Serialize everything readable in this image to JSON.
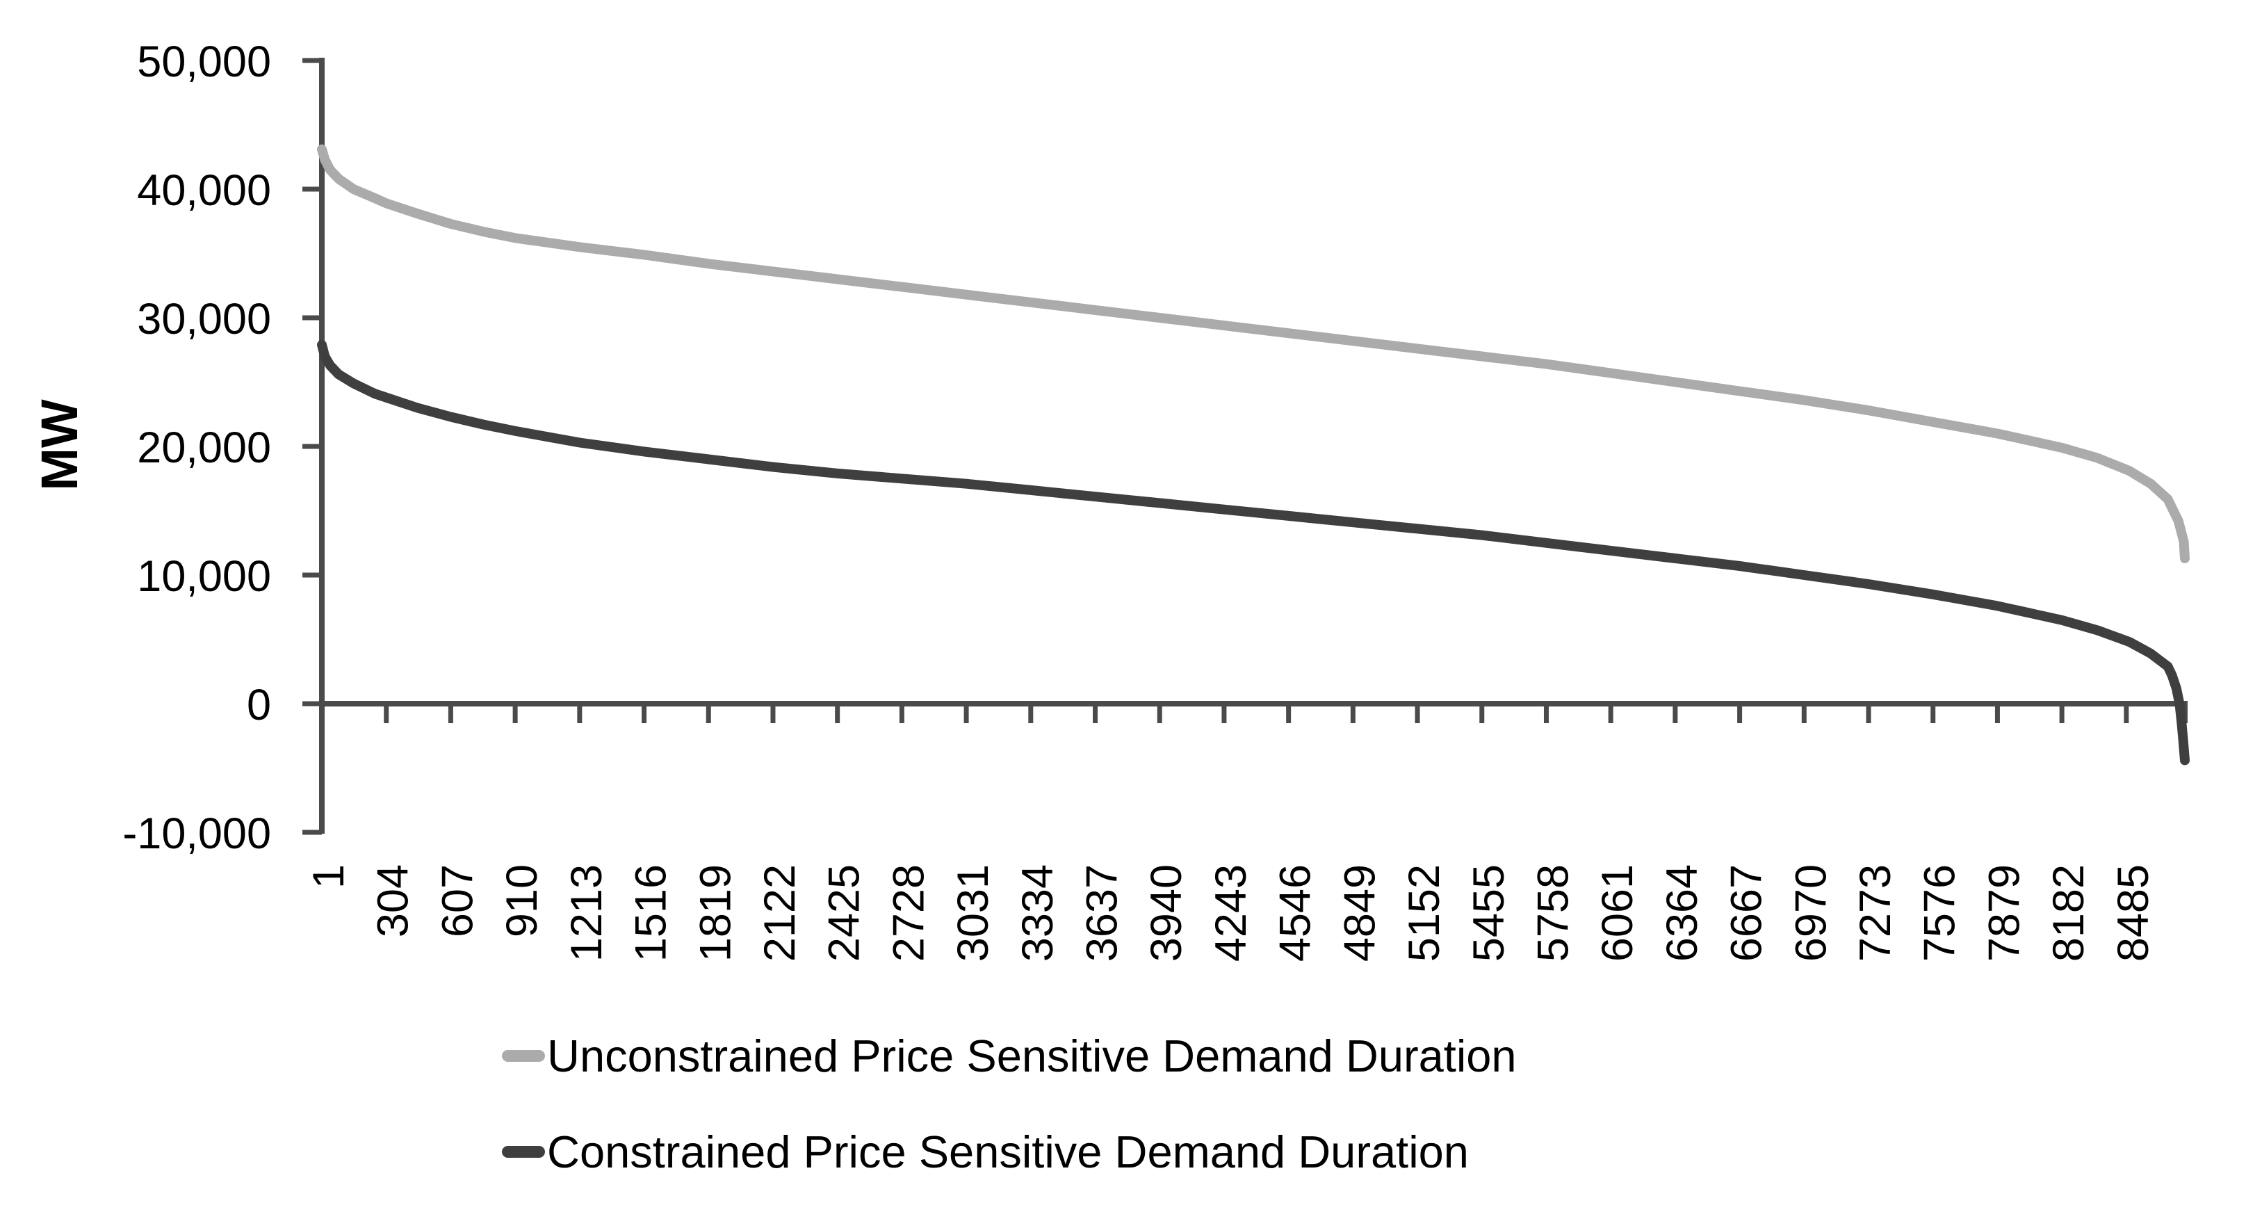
{
  "chart_data": {
    "type": "line",
    "title": "",
    "xlabel": "",
    "ylabel": "MW",
    "ylim": [
      -10000,
      50000
    ],
    "x_range_hours": [
      1,
      8760
    ],
    "grid": false,
    "legend_position": "bottom",
    "axis_color": "#4A4A4A",
    "text_color": "#000000",
    "y_ticks": [
      {
        "value": 50000,
        "label": "50,000"
      },
      {
        "value": 40000,
        "label": "40,000"
      },
      {
        "value": 30000,
        "label": "30,000"
      },
      {
        "value": 20000,
        "label": "20,000"
      },
      {
        "value": 10000,
        "label": "10,000"
      },
      {
        "value": 0,
        "label": "0"
      },
      {
        "value": -10000,
        "label": "-10,000"
      }
    ],
    "x_tick_labels": [
      1,
      304,
      607,
      910,
      1213,
      1516,
      1819,
      2122,
      2425,
      2728,
      3031,
      3334,
      3637,
      3940,
      4243,
      4546,
      4849,
      5152,
      5455,
      5758,
      6061,
      6364,
      6667,
      6970,
      7273,
      7576,
      7879,
      8182,
      8485
    ],
    "series": [
      {
        "name": "Unconstrained Price Sensitive Demand Duration",
        "color": "#ABABAB",
        "points": [
          [
            1,
            43100
          ],
          [
            15,
            42300
          ],
          [
            40,
            41500
          ],
          [
            80,
            40800
          ],
          [
            150,
            40000
          ],
          [
            250,
            39300
          ],
          [
            304,
            38900
          ],
          [
            450,
            38100
          ],
          [
            607,
            37300
          ],
          [
            760,
            36700
          ],
          [
            910,
            36200
          ],
          [
            1213,
            35500
          ],
          [
            1516,
            34900
          ],
          [
            1819,
            34200
          ],
          [
            2122,
            33600
          ],
          [
            2425,
            33000
          ],
          [
            2728,
            32400
          ],
          [
            3031,
            31800
          ],
          [
            3334,
            31200
          ],
          [
            3637,
            30600
          ],
          [
            3940,
            30000
          ],
          [
            4243,
            29400
          ],
          [
            4546,
            28800
          ],
          [
            4849,
            28200
          ],
          [
            5152,
            27600
          ],
          [
            5455,
            27000
          ],
          [
            5758,
            26400
          ],
          [
            6061,
            25700
          ],
          [
            6364,
            25000
          ],
          [
            6667,
            24300
          ],
          [
            6970,
            23600
          ],
          [
            7273,
            22800
          ],
          [
            7576,
            21900
          ],
          [
            7879,
            21000
          ],
          [
            8182,
            19900
          ],
          [
            8350,
            19100
          ],
          [
            8500,
            18100
          ],
          [
            8600,
            17100
          ],
          [
            8680,
            15900
          ],
          [
            8730,
            14200
          ],
          [
            8755,
            12600
          ],
          [
            8760,
            11300
          ]
        ]
      },
      {
        "name": "Constrained Price Sensitive Demand Duration",
        "color": "#3F3F3F",
        "points": [
          [
            1,
            27900
          ],
          [
            15,
            27000
          ],
          [
            40,
            26300
          ],
          [
            80,
            25600
          ],
          [
            150,
            24900
          ],
          [
            250,
            24100
          ],
          [
            304,
            23800
          ],
          [
            450,
            23000
          ],
          [
            607,
            22300
          ],
          [
            760,
            21700
          ],
          [
            910,
            21200
          ],
          [
            1213,
            20300
          ],
          [
            1516,
            19600
          ],
          [
            1819,
            19000
          ],
          [
            2122,
            18400
          ],
          [
            2425,
            17900
          ],
          [
            2728,
            17500
          ],
          [
            3031,
            17100
          ],
          [
            3334,
            16600
          ],
          [
            3637,
            16100
          ],
          [
            3940,
            15600
          ],
          [
            4243,
            15100
          ],
          [
            4546,
            14600
          ],
          [
            4849,
            14100
          ],
          [
            5152,
            13600
          ],
          [
            5455,
            13100
          ],
          [
            5758,
            12500
          ],
          [
            6061,
            11900
          ],
          [
            6364,
            11300
          ],
          [
            6667,
            10700
          ],
          [
            6970,
            10000
          ],
          [
            7273,
            9300
          ],
          [
            7576,
            8500
          ],
          [
            7879,
            7600
          ],
          [
            8182,
            6500
          ],
          [
            8350,
            5700
          ],
          [
            8500,
            4800
          ],
          [
            8600,
            3900
          ],
          [
            8680,
            2900
          ],
          [
            8700,
            2200
          ],
          [
            8720,
            1200
          ],
          [
            8735,
            0
          ],
          [
            8745,
            -1500
          ],
          [
            8753,
            -3000
          ],
          [
            8760,
            -4400
          ]
        ]
      }
    ]
  }
}
